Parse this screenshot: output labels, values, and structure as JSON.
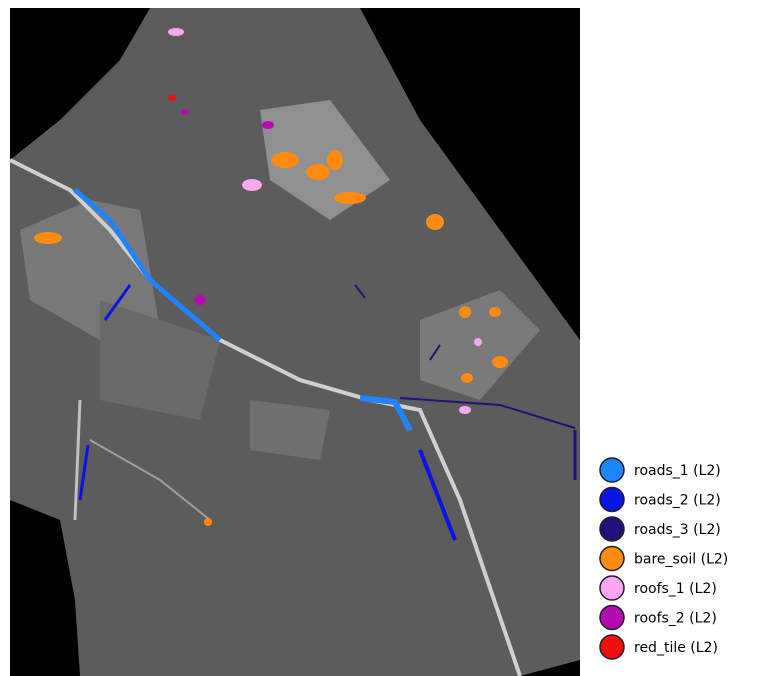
{
  "legend": {
    "items": [
      {
        "label": "roads_1 (L2)",
        "color": "#1e84ff"
      },
      {
        "label": "roads_2 (L2)",
        "color": "#0a14e6"
      },
      {
        "label": "roads_3 (L2)",
        "color": "#24107a"
      },
      {
        "label": "bare_soil (L2)",
        "color": "#ff8c10"
      },
      {
        "label": "roofs_1 (L2)",
        "color": "#f7a8f0"
      },
      {
        "label": "roofs_2 (L2)",
        "color": "#b40ab4"
      },
      {
        "label": "red_tile (L2)",
        "color": "#f01010"
      }
    ]
  }
}
